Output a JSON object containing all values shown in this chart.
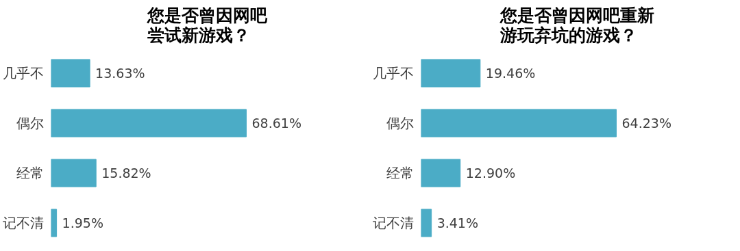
{
  "chart_data": [
    {
      "type": "bar",
      "orientation": "horizontal",
      "title": "您是否曾因网吧尝试新游戏？",
      "categories": [
        "几乎不",
        "偶尔",
        "经常",
        "记不清"
      ],
      "values": [
        13.63,
        68.61,
        15.82,
        1.95
      ],
      "value_labels": [
        "13.63%",
        "68.61%",
        "15.82%",
        "1.95%"
      ],
      "color": "#4bacc6",
      "grid": false
    },
    {
      "type": "bar",
      "orientation": "horizontal",
      "title": "您是否曾因网吧重新游玩弃坑的游戏？",
      "categories": [
        "几乎不",
        "偶尔",
        "经常",
        "记不清"
      ],
      "values": [
        19.46,
        64.23,
        12.9,
        3.41
      ],
      "value_labels": [
        "19.46%",
        "64.23%",
        "12.90%",
        "3.41%"
      ],
      "color": "#4bacc6",
      "grid": false
    }
  ]
}
